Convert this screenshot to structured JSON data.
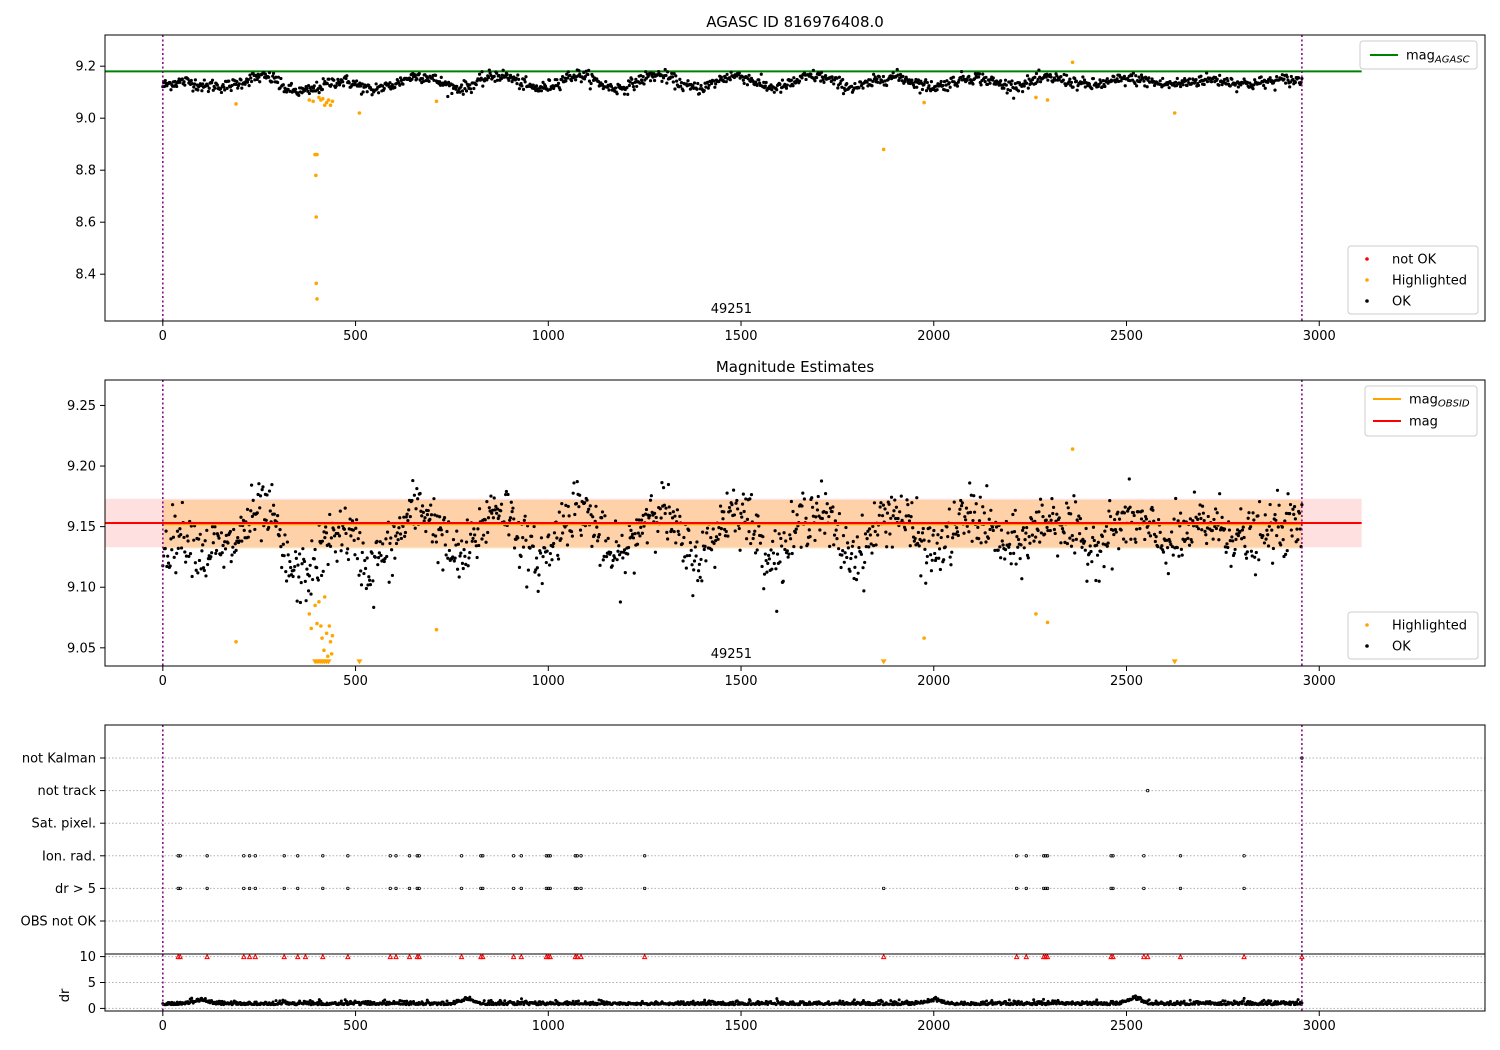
{
  "chart_data": [
    {
      "type": "scatter",
      "title": "AGASC ID 816976408.0",
      "xlabel": "",
      "ylabel": "",
      "xlim": [
        -150,
        3430
      ],
      "ylim": [
        8.22,
        9.32
      ],
      "xticks": [
        0,
        500,
        1000,
        1500,
        2000,
        2500,
        3000
      ],
      "yticks": [
        8.4,
        8.6,
        8.8,
        9.0,
        9.2
      ],
      "ytick_labels": [
        "8.4",
        "8.6",
        "8.8",
        "9.0",
        "9.2"
      ],
      "obsid_lines_x": [
        0,
        2955
      ],
      "obsid_annotation": {
        "text": "49251",
        "x": 1475
      },
      "mag_agasc": 9.18,
      "mag_agasc_line_x": [
        -150,
        3110
      ],
      "legend_top": [
        {
          "label_main": "mag",
          "label_sub": "AGASC",
          "color": "#008000",
          "kind": "line"
        }
      ],
      "legend_bottom": [
        {
          "label": "not OK",
          "color": "#ff0000"
        },
        {
          "label": "Highlighted",
          "color": "#ffa500"
        },
        {
          "label": "OK",
          "color": "#000000"
        }
      ],
      "series": [
        {
          "name": "OK",
          "color": "#000000",
          "baseline": 9.14,
          "wave_amplitude": 0.025,
          "wave_period": 205,
          "scatter": 0.012,
          "n_points": 1400
        },
        {
          "name": "Highlighted",
          "color": "#ffa500",
          "points": [
            [
              190,
              9.055
            ],
            [
              380,
              9.07
            ],
            [
              390,
              9.065
            ],
            [
              395,
              8.86
            ],
            [
              397,
              8.78
            ],
            [
              400,
              8.86
            ],
            [
              398,
              8.62
            ],
            [
              398,
              8.365
            ],
            [
              400,
              8.305
            ],
            [
              405,
              9.08
            ],
            [
              410,
              9.07
            ],
            [
              415,
              9.075
            ],
            [
              420,
              9.05
            ],
            [
              425,
              9.06
            ],
            [
              430,
              9.07
            ],
            [
              435,
              9.05
            ],
            [
              440,
              9.065
            ],
            [
              510,
              9.02
            ],
            [
              710,
              9.065
            ],
            [
              1870,
              8.88
            ],
            [
              1975,
              9.06
            ],
            [
              2265,
              9.08
            ],
            [
              2295,
              9.07
            ],
            [
              2360,
              9.215
            ],
            [
              2625,
              9.02
            ]
          ]
        }
      ]
    },
    {
      "type": "scatter",
      "title": "Magnitude Estimates",
      "xlabel": "",
      "ylabel": "",
      "xlim": [
        -150,
        3430
      ],
      "ylim": [
        9.035,
        9.271
      ],
      "xticks": [
        0,
        500,
        1000,
        1500,
        2000,
        2500,
        3000
      ],
      "yticks": [
        9.05,
        9.1,
        9.15,
        9.2,
        9.25
      ],
      "ytick_labels": [
        "9.05",
        "9.10",
        "9.15",
        "9.20",
        "9.25"
      ],
      "obsid_lines_x": [
        0,
        2955
      ],
      "obsid_annotation": {
        "text": "49251",
        "x": 1475
      },
      "mag": 9.153,
      "mag_band": [
        9.133,
        9.173
      ],
      "mag_band_x": [
        -150,
        3110
      ],
      "mag_obsid": 9.152,
      "mag_obsid_band": [
        9.132,
        9.172
      ],
      "mag_obsid_x": [
        0,
        2955
      ],
      "legend_top": [
        {
          "label_main": "mag",
          "label_sub": "OBSID",
          "color": "#ffa500",
          "kind": "line"
        },
        {
          "label_main": "mag",
          "label_sub": "",
          "color": "#ff0000",
          "kind": "line"
        }
      ],
      "legend_bottom": [
        {
          "label": "Highlighted",
          "color": "#ffa500"
        },
        {
          "label": "OK",
          "color": "#000000"
        }
      ],
      "series": [
        {
          "name": "OK",
          "color": "#000000",
          "baseline": 9.145,
          "wave_amplitude": 0.022,
          "wave_period": 205,
          "scatter": 0.012,
          "n_points": 1400
        },
        {
          "name": "Highlighted",
          "color": "#ffa500",
          "points": [
            [
              190,
              9.055
            ],
            [
              380,
              9.078
            ],
            [
              385,
              9.066
            ],
            [
              395,
              9.085
            ],
            [
              400,
              9.07
            ],
            [
              405,
              9.088
            ],
            [
              410,
              9.068
            ],
            [
              413,
              9.058
            ],
            [
              418,
              9.048
            ],
            [
              420,
              9.092
            ],
            [
              425,
              9.062
            ],
            [
              428,
              9.043
            ],
            [
              432,
              9.068
            ],
            [
              435,
              9.055
            ],
            [
              438,
              9.045
            ],
            [
              440,
              9.06
            ],
            [
              710,
              9.065
            ],
            [
              1975,
              9.058
            ],
            [
              2265,
              9.078
            ],
            [
              2295,
              9.071
            ],
            [
              2360,
              9.214
            ]
          ]
        },
        {
          "name": "Highlighted (off scale)",
          "color": "#ffa500",
          "marker": "triangle-down",
          "points": [
            [
              395,
              9.038
            ],
            [
              400,
              9.038
            ],
            [
              405,
              9.038
            ],
            [
              410,
              9.038
            ],
            [
              415,
              9.038
            ],
            [
              420,
              9.038
            ],
            [
              425,
              9.038
            ],
            [
              430,
              9.038
            ],
            [
              510,
              9.038
            ],
            [
              1870,
              9.038
            ],
            [
              2625,
              9.038
            ]
          ]
        }
      ]
    },
    {
      "type": "scatter",
      "title": "",
      "xlim": [
        -150,
        3430
      ],
      "xticks": [
        0,
        500,
        1000,
        1500,
        2000,
        2500,
        3000
      ],
      "flag_labels": [
        "not Kalman",
        "not track",
        "Sat. pixel.",
        "Ion. rad.",
        "dr > 5",
        "OBS not OK"
      ],
      "obsid_lines_x": [
        0,
        2955
      ],
      "flag_points": {
        "not Kalman": [
          2955
        ],
        "not track": [
          2555
        ],
        "Sat. pixel.": [],
        "Ion. rad.": [
          40,
          45,
          115,
          210,
          225,
          240,
          315,
          350,
          415,
          480,
          590,
          605,
          640,
          660,
          665,
          775,
          825,
          830,
          910,
          930,
          995,
          1000,
          1005,
          1070,
          1075,
          1085,
          1250,
          2215,
          2240,
          2285,
          2290,
          2295,
          2460,
          2465,
          2545,
          2640,
          2805
        ],
        "dr > 5": [
          40,
          45,
          115,
          210,
          225,
          240,
          315,
          350,
          415,
          480,
          590,
          605,
          640,
          660,
          665,
          775,
          825,
          830,
          910,
          930,
          995,
          1000,
          1005,
          1070,
          1075,
          1085,
          1250,
          1870,
          2215,
          2240,
          2285,
          2290,
          2295,
          2460,
          2465,
          2545,
          2640,
          2805
        ],
        "OBS not OK": []
      },
      "dr_panel": {
        "ylabel": "dr",
        "ylim": [
          -0.5,
          10.5
        ],
        "yticks": [
          0,
          5,
          10
        ],
        "ytick_labels": [
          "0",
          "5",
          "10"
        ],
        "threshold": 10,
        "baseline": 0.7,
        "bump_points": [
          [
            790,
            1.8
          ],
          [
            2520,
            2.0
          ],
          [
            2000,
            1.6
          ],
          [
            100,
            1.5
          ]
        ],
        "red_marker_x": [
          40,
          45,
          115,
          210,
          225,
          240,
          315,
          350,
          370,
          415,
          480,
          590,
          605,
          640,
          660,
          665,
          775,
          825,
          830,
          910,
          930,
          995,
          1000,
          1005,
          1070,
          1075,
          1085,
          1250,
          1870,
          2215,
          2240,
          2285,
          2290,
          2295,
          2460,
          2465,
          2545,
          2555,
          2640,
          2805,
          2955
        ]
      }
    }
  ]
}
